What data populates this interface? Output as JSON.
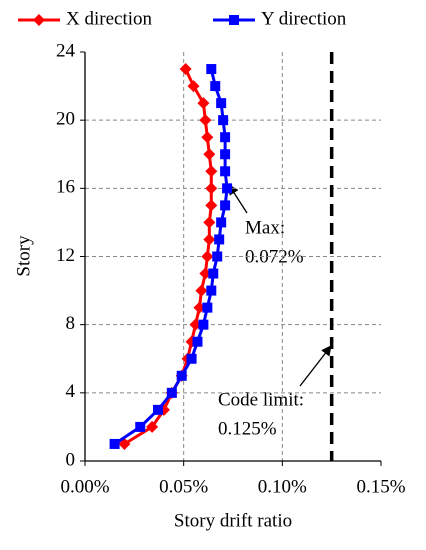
{
  "chart_data": {
    "type": "line",
    "orientation": "horizontal",
    "xlabel": "Story drift ratio",
    "ylabel": "Story",
    "y": [
      1,
      2,
      3,
      4,
      5,
      6,
      7,
      8,
      9,
      10,
      11,
      12,
      13,
      14,
      15,
      16,
      17,
      18,
      19,
      20,
      21,
      22,
      23
    ],
    "series": [
      {
        "name": "X direction",
        "color": "#ff0000",
        "marker": "diamond",
        "values": [
          0.02,
          0.034,
          0.04,
          0.044,
          0.049,
          0.052,
          0.054,
          0.056,
          0.058,
          0.059,
          0.061,
          0.062,
          0.063,
          0.063,
          0.064,
          0.064,
          0.064,
          0.063,
          0.062,
          0.061,
          0.06,
          0.055,
          0.051
        ]
      },
      {
        "name": "Y direction",
        "color": "#0000ff",
        "marker": "square",
        "values": [
          0.015,
          0.028,
          0.037,
          0.044,
          0.049,
          0.054,
          0.057,
          0.06,
          0.062,
          0.064,
          0.065,
          0.067,
          0.068,
          0.069,
          0.071,
          0.072,
          0.071,
          0.071,
          0.071,
          0.07,
          0.069,
          0.066,
          0.064
        ]
      }
    ],
    "code_limit": 0.125,
    "xlim": [
      0,
      0.15
    ],
    "xticks": [
      {
        "value": 0,
        "label": "0.00%"
      },
      {
        "value": 0.05,
        "label": "0.05%"
      },
      {
        "value": 0.1,
        "label": "0.10%"
      },
      {
        "value": 0.15,
        "label": "0.15%"
      }
    ],
    "ylim": [
      0,
      24
    ],
    "yticks": [
      0,
      4,
      8,
      12,
      16,
      20,
      24
    ],
    "grid": true,
    "legend": "top",
    "annotations": [
      {
        "text": "Max:"
      },
      {
        "text": "0.072%"
      },
      {
        "text": "Code limit:"
      },
      {
        "text": "0.125%"
      }
    ]
  }
}
